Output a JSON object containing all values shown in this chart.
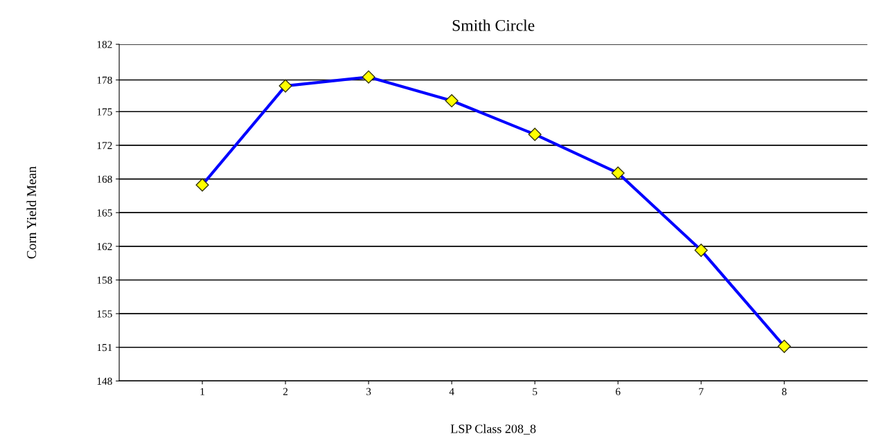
{
  "chart_data": {
    "type": "line",
    "title": "Smith Circle",
    "xlabel": "LSP Class 208_8",
    "ylabel": "Corn Yield Mean",
    "x": [
      1,
      2,
      3,
      4,
      5,
      6,
      7,
      8
    ],
    "series": [
      {
        "color": "#0000ff",
        "values": [
          167.8,
          177.8,
          178.7,
          176.3,
          172.9,
          169.0,
          161.2,
          151.5
        ]
      }
    ],
    "marker": "diamond",
    "line_style": "solid",
    "grid": "y",
    "xlim": [
      0,
      9
    ],
    "xticks": [
      1,
      2,
      3,
      4,
      5,
      6,
      7,
      8
    ],
    "ylim": [
      148,
      182
    ],
    "yticks": [
      148,
      {
        "value": 151.4,
        "label": "151"
      },
      {
        "value": 154.8,
        "label": "155"
      },
      {
        "value": 158.2,
        "label": "158"
      },
      {
        "value": 161.6,
        "label": "162"
      },
      165,
      {
        "value": 168.4,
        "label": "168"
      },
      {
        "value": 171.8,
        "label": "172"
      },
      {
        "value": 175.2,
        "label": "175"
      },
      {
        "value": 178.4,
        "label": "178"
      },
      182
    ]
  }
}
